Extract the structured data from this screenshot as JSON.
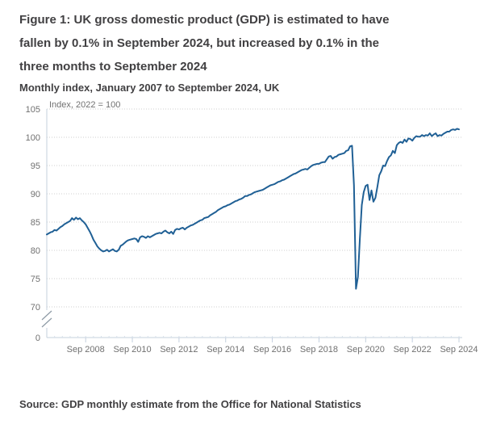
{
  "figure": {
    "title_lines": [
      "Figure 1: UK gross domestic product (GDP) is estimated to have",
      "fallen by 0.1% in September 2024, but increased by 0.1% in the",
      "three months to September 2024"
    ],
    "subtitle": "Monthly index, January 2007 to September 2024, UK",
    "source": "Source: GDP monthly estimate from the Office for National Statistics"
  },
  "colors": {
    "line": "#206095",
    "gridline": "#cfcfcf",
    "axis": "#c4d0de",
    "minor_tick": "#d8e0ea",
    "axis_break": "#8d9aa5",
    "tick_label": "#707070",
    "text": "#414042"
  },
  "chart_data": {
    "type": "line",
    "title": "Figure 1: UK gross domestic product (GDP) is estimated to have fallen by 0.1% in September 2024, but increased by 0.1% in the three months to September 2024",
    "subtitle": "Monthly index, January 2007 to September 2024, UK",
    "unit_label": "Index, 2022 = 100",
    "xlabel": "",
    "ylabel": "",
    "frequency": "monthly",
    "x_start": "2007-01",
    "x_end": "2024-09",
    "ylim": [
      70,
      105
    ],
    "y_axis_break": true,
    "y_axis_break_label": "0",
    "y_ticks": [
      105,
      100,
      95,
      90,
      85,
      80,
      75,
      70
    ],
    "x_ticks": [
      {
        "label": "Sep 2008",
        "month": 20
      },
      {
        "label": "Sep 2010",
        "month": 44
      },
      {
        "label": "Sep 2012",
        "month": 68
      },
      {
        "label": "Sep 2014",
        "month": 92
      },
      {
        "label": "Sep 2016",
        "month": 116
      },
      {
        "label": "Sep 2018",
        "month": 140
      },
      {
        "label": "Sep 2020",
        "month": 164
      },
      {
        "label": "Sep 2022",
        "month": 188
      },
      {
        "label": "Sep 2024",
        "month": 212
      }
    ],
    "grid": "horizontal-dotted",
    "legend": "none",
    "line_color": "#206095",
    "series": [
      {
        "name": "UK GDP monthly index (2022 = 100)",
        "values": [
          82.8,
          83.0,
          83.2,
          83.3,
          83.6,
          83.5,
          83.8,
          84.1,
          84.3,
          84.6,
          84.8,
          85.0,
          85.2,
          85.7,
          85.4,
          85.8,
          85.5,
          85.7,
          85.3,
          85.0,
          84.6,
          84.0,
          83.4,
          82.7,
          81.9,
          81.3,
          80.7,
          80.3,
          80.0,
          79.8,
          79.9,
          80.1,
          79.8,
          80.0,
          80.2,
          79.9,
          79.8,
          80.1,
          80.8,
          81.0,
          81.3,
          81.6,
          81.8,
          81.9,
          82.0,
          82.1,
          82.0,
          81.5,
          82.3,
          82.5,
          82.4,
          82.2,
          82.5,
          82.3,
          82.5,
          82.7,
          82.9,
          83.0,
          83.1,
          83.0,
          83.3,
          83.5,
          83.2,
          83.0,
          83.3,
          82.9,
          83.6,
          83.8,
          83.7,
          83.9,
          84.0,
          83.7,
          84.0,
          84.2,
          84.4,
          84.5,
          84.7,
          84.9,
          85.1,
          85.3,
          85.4,
          85.7,
          85.8,
          85.9,
          86.2,
          86.4,
          86.6,
          86.8,
          87.1,
          87.3,
          87.5,
          87.7,
          87.8,
          88.0,
          88.1,
          88.3,
          88.5,
          88.7,
          88.8,
          89.0,
          89.1,
          89.3,
          89.6,
          89.6,
          89.8,
          89.9,
          90.1,
          90.3,
          90.4,
          90.5,
          90.6,
          90.7,
          90.9,
          91.1,
          91.3,
          91.5,
          91.6,
          91.7,
          91.9,
          92.1,
          92.2,
          92.4,
          92.5,
          92.7,
          92.9,
          93.1,
          93.3,
          93.5,
          93.6,
          93.8,
          94.0,
          94.2,
          94.3,
          94.4,
          94.3,
          94.6,
          94.9,
          95.1,
          95.2,
          95.3,
          95.3,
          95.5,
          95.6,
          95.6,
          96.1,
          96.6,
          96.7,
          96.2,
          96.5,
          96.6,
          96.9,
          97.0,
          97.1,
          97.2,
          97.6,
          97.7,
          98.4,
          98.5,
          91.5,
          73.2,
          75.3,
          82.0,
          88.0,
          90.3,
          91.4,
          91.6,
          88.9,
          90.6,
          88.6,
          89.3,
          91.2,
          93.3,
          94.0,
          95.0,
          94.9,
          95.8,
          96.5,
          96.8,
          97.6,
          97.2,
          98.6,
          99.0,
          99.2,
          99.0,
          99.6,
          99.2,
          99.8,
          99.7,
          99.4,
          99.9,
          100.2,
          100.1,
          100.1,
          100.4,
          100.2,
          100.4,
          100.3,
          100.7,
          100.2,
          100.5,
          100.7,
          100.2,
          100.4,
          100.3,
          100.6,
          100.8,
          101.0,
          101.0,
          101.3,
          101.4,
          101.3,
          101.5,
          101.4
        ]
      }
    ]
  }
}
